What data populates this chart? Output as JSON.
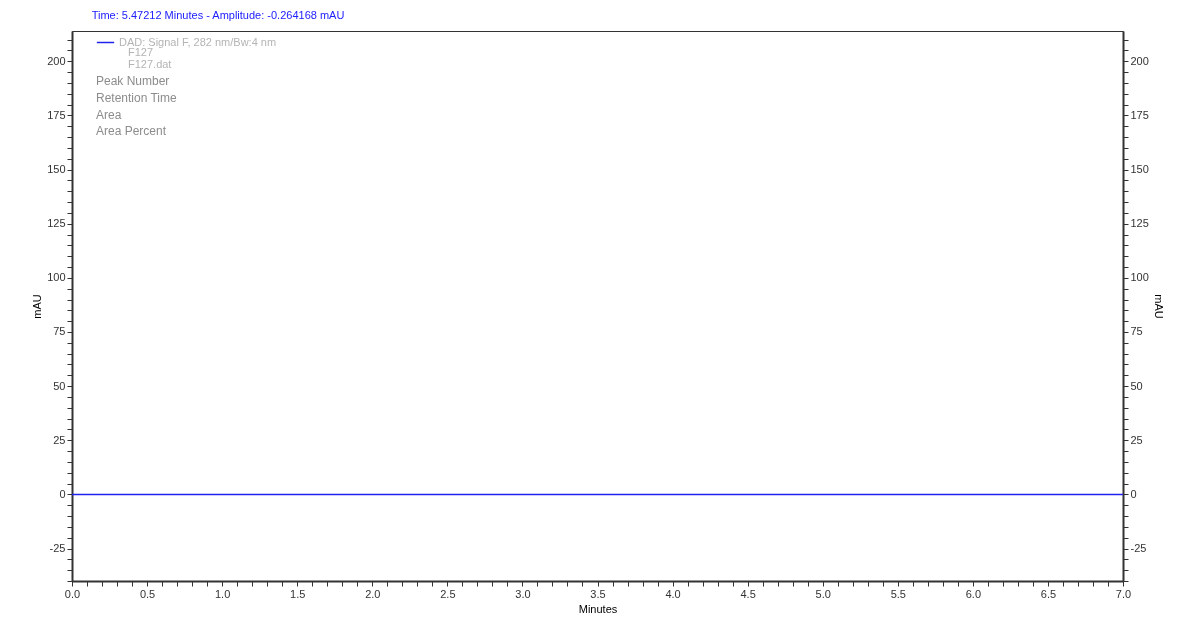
{
  "chart_data": {
    "type": "line",
    "title": "Time:  5.47212 Minutes - Amplitude:  -0.264168 mAU",
    "xlabel": "Minutes",
    "ylabel": "mAU",
    "y2label": "mAU",
    "x": [
      0,
      7
    ],
    "series": [
      {
        "name": "DAD: Signal F, 282 nm/Bw:4 nm",
        "color": "#2222ee",
        "values": [
          0,
          0
        ]
      }
    ],
    "annotations": [
      "F127",
      "F127.dat",
      "Peak Number",
      "Retention Time",
      "Area",
      "Area Percent"
    ],
    "xlim": [
      0,
      7
    ],
    "ylim": [
      -40,
      214
    ],
    "y2lim": [
      -40,
      214
    ],
    "xticks": [
      {
        "value": 0,
        "label": "0.0"
      },
      {
        "value": 0.1,
        "label": null
      },
      {
        "value": 0.2,
        "label": null
      },
      {
        "value": 0.3,
        "label": null
      },
      {
        "value": 0.4,
        "label": null
      },
      {
        "value": 0.5,
        "label": "0.5"
      },
      {
        "value": 0.6,
        "label": null
      },
      {
        "value": 0.7,
        "label": null
      },
      {
        "value": 0.8,
        "label": null
      },
      {
        "value": 0.9,
        "label": null
      },
      {
        "value": 1,
        "label": "1.0"
      },
      {
        "value": 1.1,
        "label": null
      },
      {
        "value": 1.2,
        "label": null
      },
      {
        "value": 1.3,
        "label": null
      },
      {
        "value": 1.4,
        "label": null
      },
      {
        "value": 1.5,
        "label": "1.5"
      },
      {
        "value": 1.6,
        "label": null
      },
      {
        "value": 1.7,
        "label": null
      },
      {
        "value": 1.8,
        "label": null
      },
      {
        "value": 1.9,
        "label": null
      },
      {
        "value": 2,
        "label": "2.0"
      },
      {
        "value": 2.1,
        "label": null
      },
      {
        "value": 2.2,
        "label": null
      },
      {
        "value": 2.3,
        "label": null
      },
      {
        "value": 2.4,
        "label": null
      },
      {
        "value": 2.5,
        "label": "2.5"
      },
      {
        "value": 2.6,
        "label": null
      },
      {
        "value": 2.7,
        "label": null
      },
      {
        "value": 2.8,
        "label": null
      },
      {
        "value": 2.9,
        "label": null
      },
      {
        "value": 3,
        "label": "3.0"
      },
      {
        "value": 3.1,
        "label": null
      },
      {
        "value": 3.2,
        "label": null
      },
      {
        "value": 3.3,
        "label": null
      },
      {
        "value": 3.4,
        "label": null
      },
      {
        "value": 3.5,
        "label": "3.5"
      },
      {
        "value": 3.6,
        "label": null
      },
      {
        "value": 3.7,
        "label": null
      },
      {
        "value": 3.8,
        "label": null
      },
      {
        "value": 3.9,
        "label": null
      },
      {
        "value": 4,
        "label": "4.0"
      },
      {
        "value": 4.1,
        "label": null
      },
      {
        "value": 4.2,
        "label": null
      },
      {
        "value": 4.3,
        "label": null
      },
      {
        "value": 4.4,
        "label": null
      },
      {
        "value": 4.5,
        "label": "4.5"
      },
      {
        "value": 4.6,
        "label": null
      },
      {
        "value": 4.7,
        "label": null
      },
      {
        "value": 4.8,
        "label": null
      },
      {
        "value": 4.9,
        "label": null
      },
      {
        "value": 5,
        "label": "5.0"
      },
      {
        "value": 5.1,
        "label": null
      },
      {
        "value": 5.2,
        "label": null
      },
      {
        "value": 5.3,
        "label": null
      },
      {
        "value": 5.4,
        "label": null
      },
      {
        "value": 5.5,
        "label": "5.5"
      },
      {
        "value": 5.6,
        "label": null
      },
      {
        "value": 5.7,
        "label": null
      },
      {
        "value": 5.8,
        "label": null
      },
      {
        "value": 5.9,
        "label": null
      },
      {
        "value": 6,
        "label": "6.0"
      },
      {
        "value": 6.1,
        "label": null
      },
      {
        "value": 6.2,
        "label": null
      },
      {
        "value": 6.3,
        "label": null
      },
      {
        "value": 6.4,
        "label": null
      },
      {
        "value": 6.5,
        "label": "6.5"
      },
      {
        "value": 6.6,
        "label": null
      },
      {
        "value": 6.7,
        "label": null
      },
      {
        "value": 6.8,
        "label": null
      },
      {
        "value": 6.9,
        "label": null
      },
      {
        "value": 7,
        "label": "7.0"
      }
    ],
    "yticks": [
      {
        "value": -40,
        "label": null
      },
      {
        "value": -35,
        "label": null
      },
      {
        "value": -30,
        "label": null
      },
      -25,
      {
        "value": -20,
        "label": null
      },
      {
        "value": -15,
        "label": null
      },
      {
        "value": -10,
        "label": null
      },
      {
        "value": -5,
        "label": null
      },
      0,
      {
        "value": 5,
        "label": null
      },
      {
        "value": 10,
        "label": null
      },
      {
        "value": 15,
        "label": null
      },
      {
        "value": 20,
        "label": null
      },
      25,
      {
        "value": 30,
        "label": null
      },
      {
        "value": 35,
        "label": null
      },
      {
        "value": 40,
        "label": null
      },
      {
        "value": 45,
        "label": null
      },
      50,
      {
        "value": 55,
        "label": null
      },
      {
        "value": 60,
        "label": null
      },
      {
        "value": 65,
        "label": null
      },
      {
        "value": 70,
        "label": null
      },
      75,
      {
        "value": 80,
        "label": null
      },
      {
        "value": 85,
        "label": null
      },
      {
        "value": 90,
        "label": null
      },
      {
        "value": 95,
        "label": null
      },
      100,
      {
        "value": 105,
        "label": null
      },
      {
        "value": 110,
        "label": null
      },
      {
        "value": 115,
        "label": null
      },
      {
        "value": 120,
        "label": null
      },
      125,
      {
        "value": 130,
        "label": null
      },
      {
        "value": 135,
        "label": null
      },
      {
        "value": 140,
        "label": null
      },
      {
        "value": 145,
        "label": null
      },
      150,
      {
        "value": 155,
        "label": null
      },
      {
        "value": 160,
        "label": null
      },
      {
        "value": 165,
        "label": null
      },
      {
        "value": 170,
        "label": null
      },
      175,
      {
        "value": 180,
        "label": null
      },
      {
        "value": 185,
        "label": null
      },
      {
        "value": 190,
        "label": null
      },
      {
        "value": 195,
        "label": null
      },
      200,
      {
        "value": 205,
        "label": null
      },
      {
        "value": 210,
        "label": null
      }
    ],
    "y2ticks": [
      {
        "value": -40,
        "label": null
      },
      {
        "value": -35,
        "label": null
      },
      {
        "value": -30,
        "label": null
      },
      -25,
      {
        "value": -20,
        "label": null
      },
      {
        "value": -15,
        "label": null
      },
      {
        "value": -10,
        "label": null
      },
      {
        "value": -5,
        "label": null
      },
      0,
      {
        "value": 5,
        "label": null
      },
      {
        "value": 10,
        "label": null
      },
      {
        "value": 15,
        "label": null
      },
      {
        "value": 20,
        "label": null
      },
      25,
      {
        "value": 30,
        "label": null
      },
      {
        "value": 35,
        "label": null
      },
      {
        "value": 40,
        "label": null
      },
      {
        "value": 45,
        "label": null
      },
      50,
      {
        "value": 55,
        "label": null
      },
      {
        "value": 60,
        "label": null
      },
      {
        "value": 65,
        "label": null
      },
      {
        "value": 70,
        "label": null
      },
      75,
      {
        "value": 80,
        "label": null
      },
      {
        "value": 85,
        "label": null
      },
      {
        "value": 90,
        "label": null
      },
      {
        "value": 95,
        "label": null
      },
      100,
      {
        "value": 105,
        "label": null
      },
      {
        "value": 110,
        "label": null
      },
      {
        "value": 115,
        "label": null
      },
      {
        "value": 120,
        "label": null
      },
      125,
      {
        "value": 130,
        "label": null
      },
      {
        "value": 135,
        "label": null
      },
      {
        "value": 140,
        "label": null
      },
      {
        "value": 145,
        "label": null
      },
      150,
      {
        "value": 155,
        "label": null
      },
      {
        "value": 160,
        "label": null
      },
      {
        "value": 165,
        "label": null
      },
      {
        "value": 170,
        "label": null
      },
      175,
      {
        "value": 180,
        "label": null
      },
      {
        "value": 185,
        "label": null
      },
      {
        "value": 190,
        "label": null
      },
      {
        "value": 195,
        "label": null
      },
      200,
      {
        "value": 205,
        "label": null
      },
      {
        "value": 210,
        "label": null
      }
    ],
    "grid": false,
    "legend": "top left",
    "marker": "none",
    "line_style": "solid"
  }
}
